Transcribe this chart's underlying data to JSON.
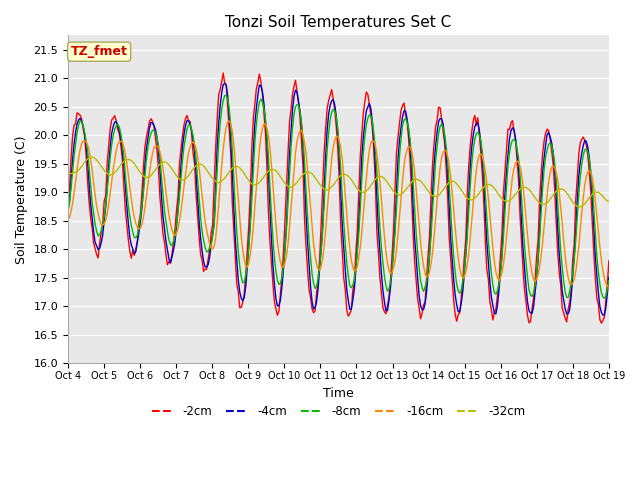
{
  "title": "Tonzi Soil Temperatures Set C",
  "xlabel": "Time",
  "ylabel": "Soil Temperature (C)",
  "ylim": [
    16.0,
    21.75
  ],
  "yticks": [
    16.0,
    16.5,
    17.0,
    17.5,
    18.0,
    18.5,
    19.0,
    19.5,
    20.0,
    20.5,
    21.0,
    21.5
  ],
  "x_tick_labels": [
    "Oct 4",
    "Oct 5",
    "Oct 6",
    "Oct 7",
    "Oct 8",
    "Oct 9",
    "Oct 10",
    "Oct 11",
    "Oct 12",
    "Oct 13",
    "Oct 14",
    "Oct 15",
    "Oct 16",
    "Oct 17",
    "Oct 18",
    "Oct 19"
  ],
  "annotation_text": "TZ_fmet",
  "annotation_color": "#cc0000",
  "annotation_bg": "#ffffcc",
  "line_colors": {
    "-2cm": "#ff0000",
    "-4cm": "#0000cc",
    "-8cm": "#00bb00",
    "-16cm": "#ff8800",
    "-32cm": "#bbbb00"
  },
  "legend_labels": [
    "-2cm",
    "-4cm",
    "-8cm",
    "-16cm",
    "-32cm"
  ],
  "bg_color": "#e8e8e8",
  "grid_color": "#ffffff",
  "spine_color": "#aaaaaa"
}
